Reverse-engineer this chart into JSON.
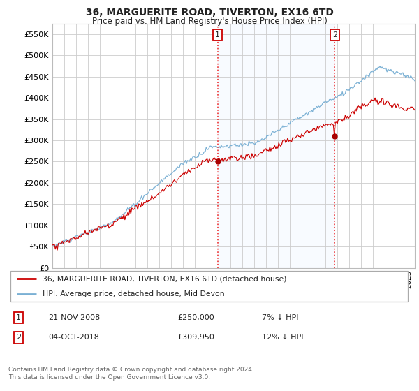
{
  "title": "36, MARGUERITE ROAD, TIVERTON, EX16 6TD",
  "subtitle": "Price paid vs. HM Land Registry's House Price Index (HPI)",
  "ytick_values": [
    0,
    50000,
    100000,
    150000,
    200000,
    250000,
    300000,
    350000,
    400000,
    450000,
    500000,
    550000
  ],
  "ylim": [
    0,
    575000
  ],
  "xlim_start": 1995.0,
  "xlim_end": 2025.5,
  "transaction1": {
    "date": 2008.9,
    "price": 250000,
    "label": "1"
  },
  "transaction2": {
    "date": 2018.77,
    "price": 309950,
    "label": "2"
  },
  "line_red_color": "#cc0000",
  "line_blue_color": "#7ab0d4",
  "vline_color": "#ee3333",
  "shade_color": "#ddeeff",
  "marker_color_red": "#aa0000",
  "background_color": "#ffffff",
  "grid_color": "#cccccc",
  "legend_label_red": "36, MARGUERITE ROAD, TIVERTON, EX16 6TD (detached house)",
  "legend_label_blue": "HPI: Average price, detached house, Mid Devon",
  "note1_label": "1",
  "note1_date": "21-NOV-2008",
  "note1_price": "£250,000",
  "note1_pct": "7% ↓ HPI",
  "note2_label": "2",
  "note2_date": "04-OCT-2018",
  "note2_price": "£309,950",
  "note2_pct": "12% ↓ HPI",
  "footer": "Contains HM Land Registry data © Crown copyright and database right 2024.\nThis data is licensed under the Open Government Licence v3.0."
}
